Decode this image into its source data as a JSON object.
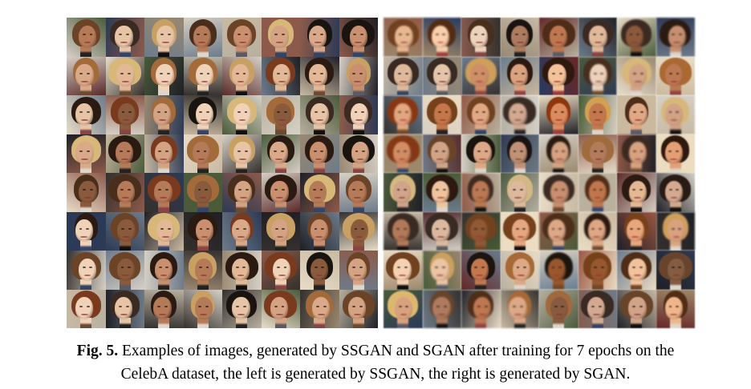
{
  "figure": {
    "label": "Fig. 5.",
    "caption_line1": " Examples of images, generated by SSGAN and SGAN after training for 7 epochs on the",
    "caption_line2": "CelebA dataset, the left is generated by SSGAN, the right is generated by SGAN."
  },
  "grids": {
    "left": {
      "rows": 8,
      "cols": 8
    },
    "right": {
      "rows": 8,
      "cols": 8
    }
  }
}
